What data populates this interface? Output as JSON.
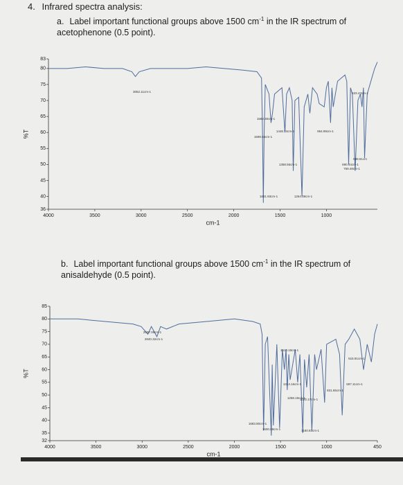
{
  "header": {
    "number": "4.",
    "title": "Infrared spectra analysis:"
  },
  "questions": [
    {
      "label": "a.",
      "text": "Label important functional groups above 1500 cm",
      "sup": "-1",
      "text_end": " in the IR spectrum of acetophenone (0.5 point)."
    },
    {
      "label": "b.",
      "text": "Label important functional groups above 1500 cm",
      "sup": "-1",
      "text_end": " in the IR spectrum of anisaldehyde (0.5 point)."
    }
  ],
  "chart_data": [
    {
      "type": "line",
      "xlabel": "cm-1",
      "ylabel": "%T",
      "color": "#4f6c9c",
      "xlim": [
        4000,
        450
      ],
      "xticks": [
        4000,
        3500,
        3000,
        2500,
        2000,
        1500,
        1000
      ],
      "ylim": [
        36,
        83
      ],
      "yticks": [
        36,
        40,
        45,
        50,
        55,
        60,
        65,
        70,
        75,
        80,
        83
      ],
      "x": [
        4000,
        3800,
        3600,
        3400,
        3200,
        3100,
        3062,
        3020,
        2900,
        2700,
        2500,
        2300,
        2100,
        1900,
        1750,
        1700,
        1690,
        1681,
        1672,
        1660,
        1620,
        1598,
        1582,
        1560,
        1480,
        1448,
        1430,
        1400,
        1370,
        1358,
        1340,
        1300,
        1264,
        1240,
        1200,
        1179,
        1150,
        1100,
        1078,
        1024,
        1000,
        980,
        955,
        940,
        927,
        880,
        800,
        780,
        760,
        740,
        720,
        690,
        660,
        633,
        616,
        600,
        588,
        560,
        520,
        480,
        450
      ],
      "values": [
        80,
        80,
        80.5,
        80,
        80,
        79,
        77.5,
        79,
        80,
        80,
        80,
        80.5,
        80,
        79.5,
        79,
        77,
        60,
        38,
        60,
        75,
        72,
        63,
        66,
        72,
        74,
        60,
        72,
        74,
        70,
        48,
        70,
        71,
        40,
        68,
        72,
        66,
        74,
        72,
        69,
        68,
        74,
        76,
        63,
        74,
        68,
        76,
        78,
        76,
        50,
        74,
        72,
        48,
        70,
        72,
        68,
        74,
        52,
        72,
        76,
        80,
        82
      ],
      "annotations": [
        "3062.11cm-1",
        "1582.30cm-1",
        "1598.65cm-1",
        "1448.74cm-1",
        "1358.56cm-1",
        "1681.93cm-1",
        "1264.39cm-1",
        "954.99cm-1",
        "588.61cm",
        "690.44cm-1",
        "759.48cm-1",
        "633.43cm-1"
      ]
    },
    {
      "type": "line",
      "xlabel": "cm-1",
      "ylabel": "%T",
      "color": "#4f6c9c",
      "xlim": [
        4000,
        450
      ],
      "xticks": [
        4000,
        3500,
        3000,
        2500,
        2000,
        1500,
        1000,
        450
      ],
      "ylim": [
        32,
        85
      ],
      "yticks": [
        32,
        35,
        40,
        45,
        50,
        55,
        60,
        65,
        70,
        75,
        80,
        85
      ],
      "x": [
        4000,
        3700,
        3400,
        3100,
        3010,
        2937,
        2900,
        2840,
        2800,
        2735,
        2600,
        2300,
        2000,
        1800,
        1720,
        1700,
        1683,
        1665,
        1640,
        1600,
        1590,
        1577,
        1540,
        1510,
        1480,
        1458,
        1440,
        1427,
        1410,
        1396,
        1340,
        1314,
        1290,
        1258,
        1240,
        1216,
        1190,
        1160,
        1130,
        1110,
        1060,
        1022,
        1000,
        900,
        860,
        831,
        800,
        760,
        700,
        640,
        600,
        560,
        515,
        480,
        450
      ],
      "values": [
        80,
        80,
        79,
        78,
        77,
        74,
        77,
        73,
        77,
        76,
        78,
        79,
        80,
        79,
        78,
        74,
        36,
        70,
        73,
        34,
        62,
        38,
        70,
        37,
        68,
        60,
        68,
        52,
        66,
        56,
        68,
        55,
        66,
        35,
        64,
        53,
        66,
        36,
        66,
        60,
        68,
        47,
        70,
        72,
        66,
        42,
        70,
        72,
        76,
        72,
        60,
        70,
        63,
        74,
        78
      ],
      "annotations": [
        "2937.09cm-1",
        "2840.32cm-1",
        "1683.80cm-1",
        "1600.08cm-1",
        "1510.18cm-1",
        "1314.16cm-1",
        "1258.19cm-1",
        "1160.83cm-1",
        "1022.17cm-1",
        "831.65cm-1",
        "597.11cm-1",
        "515.91cm-1"
      ]
    }
  ]
}
